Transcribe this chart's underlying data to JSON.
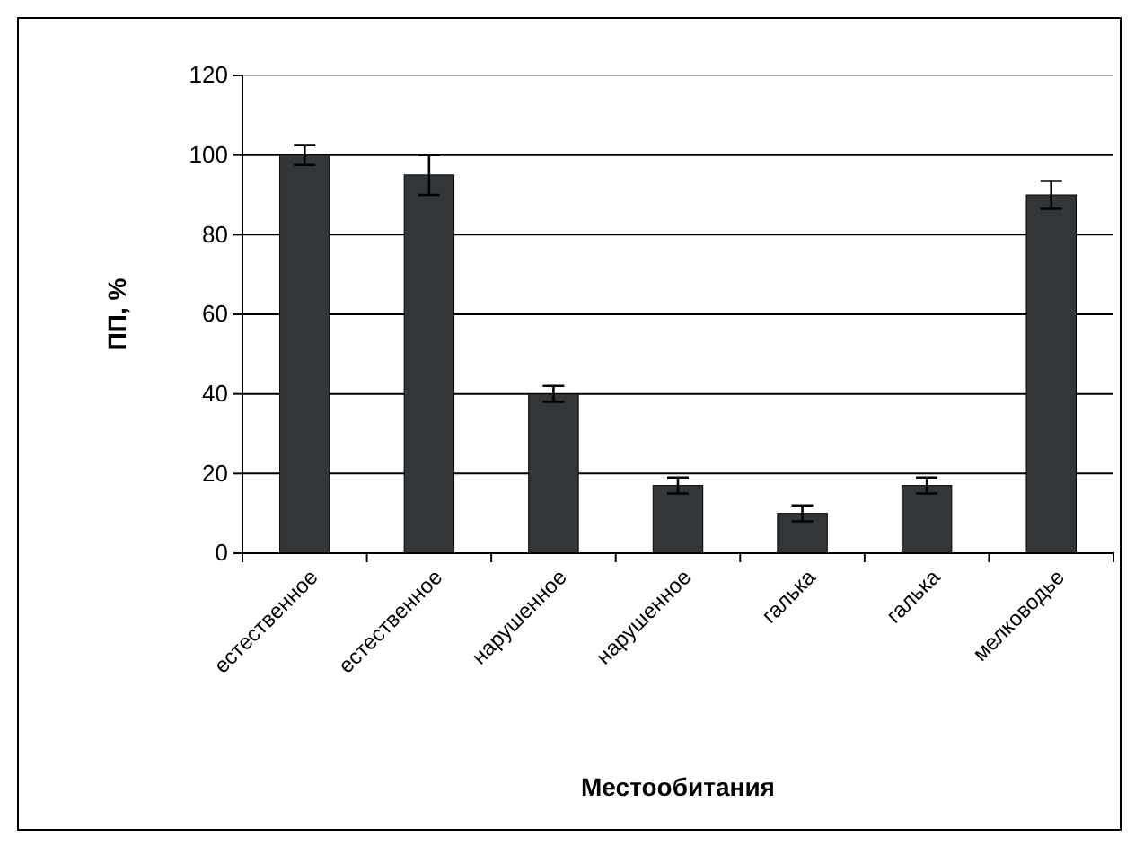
{
  "chart_data": {
    "type": "bar",
    "xlabel": "Местообитания",
    "ylabel": "ПП, %",
    "categories": [
      "естественное",
      "естественное",
      "нарушенное",
      "нарушенное",
      "галька",
      "галька",
      "мелководье"
    ],
    "values": [
      100,
      95,
      40,
      17,
      10,
      17,
      90
    ],
    "errors": [
      2.5,
      5,
      2,
      2,
      2,
      2,
      3.5
    ],
    "color": "#333639",
    "ylim": [
      0,
      120
    ],
    "yticks": [
      0,
      20,
      40,
      60,
      80,
      100,
      120
    ],
    "grid": "y"
  }
}
